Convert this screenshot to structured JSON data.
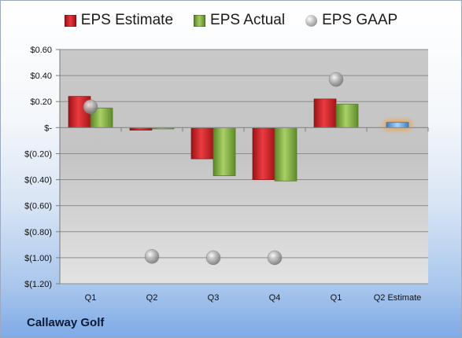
{
  "chart_data": {
    "type": "bar",
    "categories": [
      "Q1",
      "Q2",
      "Q3",
      "Q4",
      "Q1",
      "Q2 Estimate"
    ],
    "series": [
      {
        "name": "EPS Estimate",
        "values": [
          0.24,
          -0.02,
          -0.24,
          -0.4,
          0.22,
          null
        ],
        "color": "#d7242a"
      },
      {
        "name": "EPS Actual",
        "values": [
          0.15,
          -0.01,
          -0.37,
          -0.41,
          0.18,
          null
        ],
        "color": "#8db54a"
      },
      {
        "name": "EPS GAAP",
        "values": [
          0.16,
          -0.99,
          -1.0,
          -1.0,
          0.37,
          null
        ],
        "color": "#b5b5b5",
        "marker": "ball"
      }
    ],
    "estimate": {
      "category": "Q2 Estimate",
      "value": 0.04,
      "color": "#7ab4e6",
      "glow": "#f5a04a"
    },
    "ylim": [
      -1.2,
      0.6
    ],
    "yticks": [
      0.6,
      0.4,
      0.2,
      0,
      -0.2,
      -0.4,
      -0.6,
      -0.8,
      -1.0,
      -1.2
    ],
    "ytick_labels": [
      "$0.60",
      "$0.40",
      "$0.20",
      "$-",
      "$(0.20)",
      "$(0.40)",
      "$(0.60)",
      "$(0.80)",
      "$(1.00)",
      "$(1.20)"
    ],
    "grid": true,
    "legend": "top",
    "xlabel": "",
    "ylabel": ""
  },
  "company": "Callaway Golf"
}
